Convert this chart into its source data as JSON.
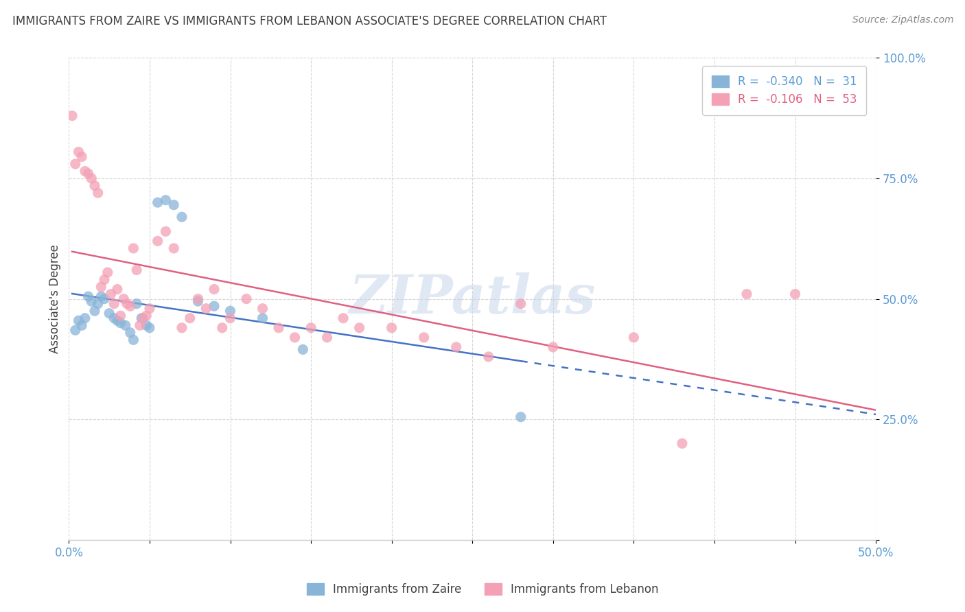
{
  "title": "IMMIGRANTS FROM ZAIRE VS IMMIGRANTS FROM LEBANON ASSOCIATE'S DEGREE CORRELATION CHART",
  "source": "Source: ZipAtlas.com",
  "ylabel": "Associate's Degree",
  "xlim": [
    0.0,
    0.5
  ],
  "ylim": [
    0.0,
    1.0
  ],
  "xticks": [
    0.0,
    0.05,
    0.1,
    0.15,
    0.2,
    0.25,
    0.3,
    0.35,
    0.4,
    0.45,
    0.5
  ],
  "yticks": [
    0.0,
    0.25,
    0.5,
    0.75,
    1.0
  ],
  "zaire_color": "#88b4d8",
  "zaire_line_color": "#4472c4",
  "lebanon_color": "#f4a0b5",
  "lebanon_line_color": "#e06080",
  "zaire_R": -0.34,
  "zaire_N": 31,
  "lebanon_R": -0.106,
  "lebanon_N": 53,
  "legend_label_zaire": "R =  -0.340   N =  31",
  "legend_label_lebanon": "R =  -0.106   N =  53",
  "watermark": "ZIPatlas",
  "zaire_x": [
    0.004,
    0.006,
    0.008,
    0.01,
    0.012,
    0.014,
    0.016,
    0.018,
    0.02,
    0.022,
    0.025,
    0.028,
    0.03,
    0.032,
    0.035,
    0.038,
    0.04,
    0.042,
    0.045,
    0.048,
    0.05,
    0.055,
    0.06,
    0.065,
    0.07,
    0.08,
    0.09,
    0.1,
    0.12,
    0.145,
    0.28
  ],
  "zaire_y": [
    0.435,
    0.455,
    0.445,
    0.46,
    0.505,
    0.495,
    0.475,
    0.49,
    0.505,
    0.5,
    0.47,
    0.46,
    0.455,
    0.45,
    0.445,
    0.43,
    0.415,
    0.49,
    0.46,
    0.445,
    0.44,
    0.7,
    0.705,
    0.695,
    0.67,
    0.495,
    0.485,
    0.475,
    0.46,
    0.395,
    0.255
  ],
  "lebanon_x": [
    0.002,
    0.004,
    0.006,
    0.008,
    0.01,
    0.012,
    0.014,
    0.016,
    0.018,
    0.02,
    0.022,
    0.024,
    0.026,
    0.028,
    0.03,
    0.032,
    0.034,
    0.036,
    0.038,
    0.04,
    0.042,
    0.044,
    0.046,
    0.048,
    0.05,
    0.055,
    0.06,
    0.065,
    0.07,
    0.075,
    0.08,
    0.085,
    0.09,
    0.095,
    0.1,
    0.11,
    0.12,
    0.13,
    0.14,
    0.15,
    0.16,
    0.17,
    0.18,
    0.2,
    0.22,
    0.24,
    0.26,
    0.28,
    0.3,
    0.35,
    0.38,
    0.42,
    0.45
  ],
  "lebanon_y": [
    0.88,
    0.78,
    0.805,
    0.795,
    0.765,
    0.76,
    0.75,
    0.735,
    0.72,
    0.525,
    0.54,
    0.555,
    0.51,
    0.49,
    0.52,
    0.465,
    0.5,
    0.49,
    0.485,
    0.605,
    0.56,
    0.445,
    0.46,
    0.465,
    0.48,
    0.62,
    0.64,
    0.605,
    0.44,
    0.46,
    0.5,
    0.48,
    0.52,
    0.44,
    0.46,
    0.5,
    0.48,
    0.44,
    0.42,
    0.44,
    0.42,
    0.46,
    0.44,
    0.44,
    0.42,
    0.4,
    0.38,
    0.49,
    0.4,
    0.42,
    0.2,
    0.51,
    0.51
  ],
  "background_color": "#ffffff",
  "grid_color": "#cccccc",
  "axis_color": "#5b9bd5",
  "title_color": "#404040",
  "source_color": "#888888",
  "zaire_trendline_start_x": 0.002,
  "zaire_trendline_solid_end_x": 0.28,
  "zaire_trendline_dash_end_x": 0.5,
  "lebanon_trendline_start_x": 0.002,
  "lebanon_trendline_end_x": 0.5
}
